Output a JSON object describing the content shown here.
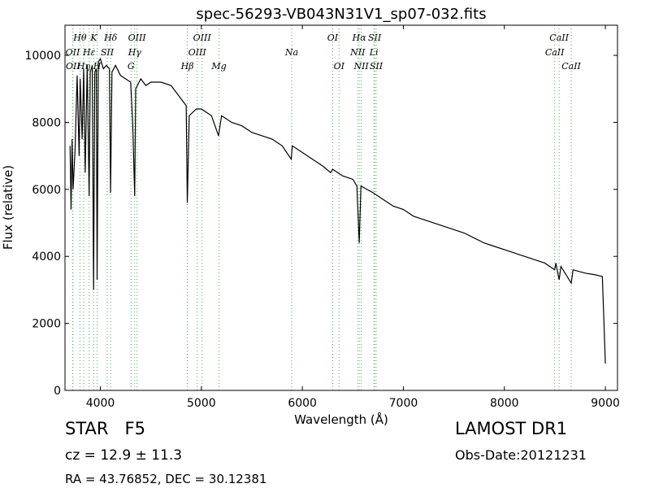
{
  "chart_data": {
    "type": "line",
    "title": "spec-56293-VB043N31V1_sp07-032.fits",
    "xlabel": "Wavelength (Å)",
    "ylabel": "Flux (relative)",
    "xlim": [
      3650,
      9120
    ],
    "ylim": [
      0,
      10900
    ],
    "xticks": [
      4000,
      5000,
      6000,
      7000,
      8000,
      9000
    ],
    "yticks": [
      0,
      2000,
      4000,
      6000,
      8000,
      10000
    ],
    "grid": false,
    "x": [
      3700,
      3710,
      3720,
      3730,
      3750,
      3770,
      3790,
      3800,
      3820,
      3835,
      3850,
      3870,
      3889,
      3900,
      3920,
      3933,
      3945,
      3960,
      3968,
      3980,
      4000,
      4030,
      4060,
      4090,
      4101,
      4115,
      4150,
      4200,
      4250,
      4300,
      4320,
      4340,
      4350,
      4400,
      4450,
      4500,
      4600,
      4700,
      4800,
      4850,
      4861,
      4880,
      4950,
      5000,
      5100,
      5170,
      5200,
      5300,
      5400,
      5500,
      5600,
      5700,
      5800,
      5890,
      5900,
      6000,
      6100,
      6200,
      6280,
      6300,
      6400,
      6500,
      6540,
      6563,
      6580,
      6700,
      6800,
      6900,
      7000,
      7100,
      7200,
      7300,
      7400,
      7500,
      7600,
      7700,
      7800,
      7900,
      8000,
      8100,
      8200,
      8300,
      8400,
      8498,
      8510,
      8542,
      8560,
      8662,
      8680,
      8800,
      8900,
      8970,
      9000
    ],
    "series": [
      {
        "name": "Flux",
        "color": "#000000",
        "values": [
          7300,
          5400,
          7500,
          6000,
          7200,
          9400,
          7000,
          9300,
          7500,
          9600,
          6500,
          9700,
          5800,
          9500,
          9700,
          3000,
          9500,
          9600,
          3300,
          9800,
          9900,
          9600,
          9700,
          9600,
          5900,
          9500,
          9700,
          9400,
          9300,
          9200,
          8000,
          5800,
          9000,
          9300,
          9100,
          9200,
          9200,
          9100,
          8700,
          8500,
          5600,
          8200,
          8400,
          8400,
          8200,
          7600,
          8200,
          8000,
          7900,
          7700,
          7600,
          7500,
          7300,
          6900,
          7300,
          7100,
          6900,
          6700,
          6500,
          6600,
          6400,
          6300,
          6100,
          4400,
          6100,
          5900,
          5700,
          5500,
          5400,
          5200,
          5100,
          5000,
          4900,
          4800,
          4700,
          4550,
          4400,
          4300,
          4200,
          4100,
          4000,
          3900,
          3800,
          3600,
          3800,
          3300,
          3700,
          3200,
          3600,
          3500,
          3450,
          3400,
          800
        ]
      }
    ],
    "lines": [
      {
        "wavelength": 3726,
        "label": "OII"
      },
      {
        "wavelength": 3729,
        "label": "OII"
      },
      {
        "wavelength": 3798,
        "label": "Hθ"
      },
      {
        "wavelength": 3835,
        "label": "Hη"
      },
      {
        "wavelength": 3889,
        "label": "Hε"
      },
      {
        "wavelength": 3934,
        "label": "K"
      },
      {
        "wavelength": 3968,
        "label": "H"
      },
      {
        "wavelength": 4068,
        "label": "SII"
      },
      {
        "wavelength": 4102,
        "label": "Hδ"
      },
      {
        "wavelength": 4304,
        "label": "G"
      },
      {
        "wavelength": 4340,
        "label": "Hγ"
      },
      {
        "wavelength": 4363,
        "label": "OIII"
      },
      {
        "wavelength": 4861,
        "label": "Hβ"
      },
      {
        "wavelength": 4959,
        "label": "OIII"
      },
      {
        "wavelength": 5007,
        "label": "OIII"
      },
      {
        "wavelength": 5175,
        "label": "Mg"
      },
      {
        "wavelength": 5894,
        "label": "Na"
      },
      {
        "wavelength": 6300,
        "label": "OI"
      },
      {
        "wavelength": 6363,
        "label": "OI"
      },
      {
        "wavelength": 6548,
        "label": "NII"
      },
      {
        "wavelength": 6563,
        "label": "Hα"
      },
      {
        "wavelength": 6583,
        "label": "NII"
      },
      {
        "wavelength": 6708,
        "label": "Li"
      },
      {
        "wavelength": 6716,
        "label": "SII"
      },
      {
        "wavelength": 6731,
        "label": "SII"
      },
      {
        "wavelength": 8498,
        "label": "CaII"
      },
      {
        "wavelength": 8542,
        "label": "CaII"
      },
      {
        "wavelength": 8662,
        "label": "CaII"
      }
    ],
    "annotations": {
      "class": "STAR   F5",
      "cz": "cz = 12.9 ± 11.3",
      "coords": "RA = 43.76852, DEC = 30.12381",
      "survey": "LAMOST DR1",
      "date": "Obs-Date:20121231"
    }
  }
}
